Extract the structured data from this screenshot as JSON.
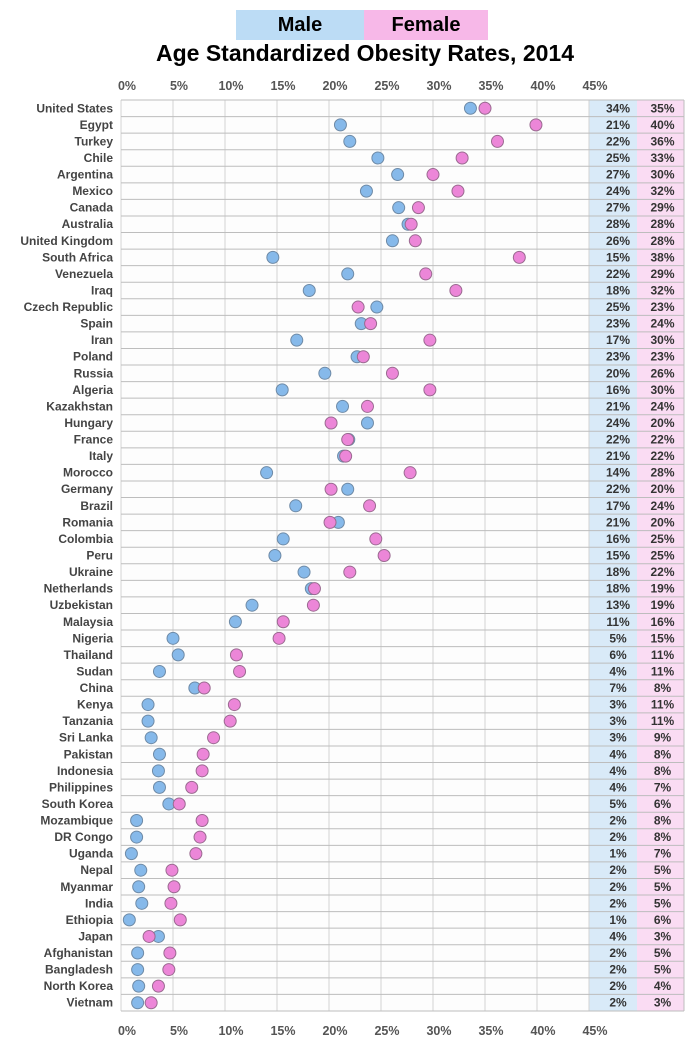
{
  "legend": {
    "male": "Male",
    "female": "Female"
  },
  "colors": {
    "male": "#86b9ea",
    "female": "#ec86d8",
    "male_column": "#d9eaf8",
    "female_column": "#fadcf3"
  },
  "chart_data": {
    "type": "scatter",
    "subtype": "dot plot",
    "title": "Age Standardized Obesity Rates, 2014",
    "xlim": [
      0,
      45
    ],
    "x_ticks": [
      "0%",
      "5%",
      "10%",
      "15%",
      "20%",
      "25%",
      "30%",
      "35%",
      "40%",
      "45%"
    ],
    "grid": true,
    "legend_position": "top",
    "categories": [
      "United States",
      "Egypt",
      "Turkey",
      "Chile",
      "Argentina",
      "Mexico",
      "Canada",
      "Australia",
      "United Kingdom",
      "South Africa",
      "Venezuela",
      "Iraq",
      "Czech Republic",
      "Spain",
      "Iran",
      "Poland",
      "Russia",
      "Algeria",
      "Kazakhstan",
      "Hungary",
      "France",
      "Italy",
      "Morocco",
      "Germany",
      "Brazil",
      "Romania",
      "Colombia",
      "Peru",
      "Ukraine",
      "Netherlands",
      "Uzbekistan",
      "Malaysia",
      "Nigeria",
      "Thailand",
      "Sudan",
      "China",
      "Kenya",
      "Tanzania",
      "Sri Lanka",
      "Pakistan",
      "Indonesia",
      "Philippines",
      "South Korea",
      "Mozambique",
      "DR Congo",
      "Uganda",
      "Nepal",
      "Myanmar",
      "India",
      "Ethiopia",
      "Japan",
      "Afghanistan",
      "Bangladesh",
      "North Korea",
      "Vietnam"
    ],
    "series": [
      {
        "name": "Male",
        "values": [
          33.6,
          21.1,
          22.0,
          24.7,
          26.6,
          23.6,
          26.7,
          27.6,
          26.1,
          14.6,
          21.8,
          18.1,
          24.6,
          23.1,
          16.9,
          22.7,
          19.6,
          15.5,
          21.3,
          23.7,
          21.9,
          21.4,
          14.0,
          21.8,
          16.8,
          20.9,
          15.6,
          14.8,
          17.6,
          18.3,
          12.6,
          11.0,
          5.0,
          5.5,
          3.7,
          7.1,
          2.6,
          2.6,
          2.9,
          3.7,
          3.6,
          3.7,
          4.6,
          1.5,
          1.5,
          1.0,
          1.9,
          1.7,
          2.0,
          0.8,
          3.6,
          1.6,
          1.6,
          1.7,
          1.6
        ],
        "labels": [
          "34%",
          "21%",
          "22%",
          "25%",
          "27%",
          "24%",
          "27%",
          "28%",
          "26%",
          "15%",
          "22%",
          "18%",
          "25%",
          "23%",
          "17%",
          "23%",
          "20%",
          "16%",
          "21%",
          "24%",
          "22%",
          "21%",
          "14%",
          "22%",
          "17%",
          "21%",
          "16%",
          "15%",
          "18%",
          "18%",
          "13%",
          "11%",
          "5%",
          "6%",
          "4%",
          "7%",
          "3%",
          "3%",
          "3%",
          "4%",
          "4%",
          "4%",
          "5%",
          "2%",
          "2%",
          "1%",
          "2%",
          "2%",
          "2%",
          "1%",
          "4%",
          "2%",
          "2%",
          "2%",
          "2%"
        ]
      },
      {
        "name": "Female",
        "values": [
          35.0,
          39.9,
          36.2,
          32.8,
          30.0,
          32.4,
          28.6,
          27.9,
          28.3,
          38.3,
          29.3,
          32.2,
          22.8,
          24.0,
          29.7,
          23.3,
          26.1,
          29.7,
          23.7,
          20.2,
          21.8,
          21.6,
          27.8,
          20.2,
          23.9,
          20.1,
          24.5,
          25.3,
          22.0,
          18.6,
          18.5,
          15.6,
          15.2,
          11.1,
          11.4,
          8.0,
          10.9,
          10.5,
          8.9,
          7.9,
          7.8,
          6.8,
          5.6,
          7.8,
          7.6,
          7.2,
          4.9,
          5.1,
          4.8,
          5.7,
          2.7,
          4.7,
          4.6,
          3.6,
          2.9
        ],
        "labels": [
          "35%",
          "40%",
          "36%",
          "33%",
          "30%",
          "32%",
          "29%",
          "28%",
          "28%",
          "38%",
          "29%",
          "32%",
          "23%",
          "24%",
          "30%",
          "23%",
          "26%",
          "30%",
          "24%",
          "20%",
          "22%",
          "22%",
          "28%",
          "20%",
          "24%",
          "20%",
          "25%",
          "25%",
          "22%",
          "19%",
          "19%",
          "16%",
          "15%",
          "11%",
          "11%",
          "8%",
          "11%",
          "11%",
          "9%",
          "8%",
          "8%",
          "7%",
          "6%",
          "8%",
          "8%",
          "7%",
          "5%",
          "5%",
          "5%",
          "6%",
          "3%",
          "5%",
          "5%",
          "4%",
          "3%"
        ]
      }
    ]
  }
}
